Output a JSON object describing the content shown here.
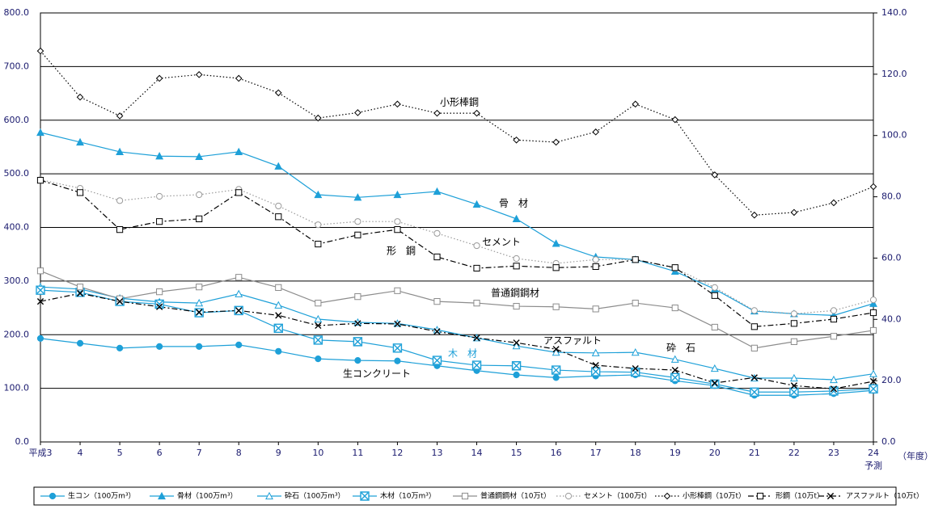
{
  "chart_data": {
    "type": "line",
    "categories": [
      "平成3",
      "4",
      "5",
      "6",
      "7",
      "8",
      "9",
      "10",
      "11",
      "12",
      "13",
      "14",
      "15",
      "16",
      "17",
      "18",
      "19",
      "20",
      "21",
      "22",
      "23",
      "24"
    ],
    "category_note": "予測",
    "x_unit": "（年度）",
    "ylim": [
      0,
      800
    ],
    "yticks": [
      {
        "value": 0,
        "label": "0.0"
      },
      {
        "value": 100,
        "label": "100.0"
      },
      {
        "value": 200,
        "label": "200.0"
      },
      {
        "value": 300,
        "label": "300.0"
      },
      {
        "value": 400,
        "label": "400.0"
      },
      {
        "value": 500,
        "label": "500.0"
      },
      {
        "value": 600,
        "label": "600.0"
      },
      {
        "value": 700,
        "label": "700.0"
      },
      {
        "value": 800,
        "label": "800.0"
      }
    ],
    "y2lim": [
      0,
      140
    ],
    "y2ticks": [
      {
        "value": 0,
        "label": "0.0"
      },
      {
        "value": 20,
        "label": "20.0"
      },
      {
        "value": 40,
        "label": "40.0"
      },
      {
        "value": 60,
        "label": "60.0"
      },
      {
        "value": 80,
        "label": "80.0"
      },
      {
        "value": 100,
        "label": "100.0"
      },
      {
        "value": 120,
        "label": "120.0"
      },
      {
        "value": 140,
        "label": "140.0"
      }
    ],
    "grid": true,
    "legend_position": "bottom",
    "series": [
      {
        "name": "生コン（100万m³）",
        "color": "#1ea0d8",
        "marker": "circle-filled",
        "dash": "solid",
        "values": [
          193,
          184,
          175,
          178,
          178,
          181,
          169,
          155,
          152,
          151,
          142,
          133,
          125,
          120,
          123,
          125,
          114,
          105,
          87,
          87,
          90,
          96
        ]
      },
      {
        "name": "骨材（100万m³）",
        "color": "#1ea0d8",
        "marker": "triangle-filled",
        "dash": "solid",
        "values": [
          577,
          559,
          541,
          533,
          532,
          541,
          514,
          461,
          456,
          461,
          467,
          443,
          416,
          370,
          345,
          340,
          318,
          285,
          244,
          239,
          236,
          258
        ]
      },
      {
        "name": "砕石（100万m³）",
        "color": "#1ea0d8",
        "marker": "triangle-open",
        "dash": "solid",
        "values": [
          289,
          285,
          268,
          261,
          259,
          276,
          255,
          229,
          223,
          221,
          209,
          194,
          179,
          167,
          166,
          167,
          154,
          137,
          119,
          119,
          116,
          127
        ]
      },
      {
        "name": "木材（10万m³）",
        "color": "#1ea0d8",
        "marker": "box-x",
        "dash": "solid",
        "values": [
          283,
          279,
          262,
          257,
          241,
          245,
          212,
          190,
          187,
          175,
          152,
          143,
          142,
          134,
          131,
          130,
          120,
          108,
          93,
          93,
          95,
          99
        ]
      },
      {
        "name": "普通鋼鋼材（10万t）",
        "color": "#8c8c8c",
        "marker": "square-open",
        "dash": "solid",
        "values": [
          319,
          289,
          267,
          280,
          289,
          307,
          288,
          259,
          271,
          282,
          262,
          259,
          253,
          252,
          248,
          259,
          250,
          214,
          175,
          187,
          197,
          208
        ]
      },
      {
        "name": "セメント（100万t）",
        "color": "#9a9a9a",
        "marker": "circle-open",
        "dash": "dotted",
        "values": [
          489,
          473,
          450,
          458,
          461,
          471,
          440,
          405,
          411,
          411,
          389,
          366,
          342,
          333,
          340,
          340,
          324,
          288,
          245,
          239,
          245,
          265
        ]
      },
      {
        "name": "小形棒鋼（10万t）",
        "color": "#000000",
        "marker": "diamond-open",
        "dash": "dotted",
        "values": [
          729,
          643,
          608,
          678,
          685,
          678,
          651,
          604,
          614,
          630,
          613,
          613,
          563,
          559,
          578,
          630,
          601,
          498,
          423,
          428,
          446,
          476
        ]
      },
      {
        "name": "形鋼（10万t）",
        "color": "#000000",
        "marker": "square-open",
        "dash": "dashdot",
        "values": [
          488,
          465,
          396,
          411,
          416,
          465,
          420,
          369,
          386,
          396,
          345,
          324,
          328,
          325,
          327,
          340,
          325,
          273,
          215,
          221,
          229,
          241
        ]
      },
      {
        "name": "アスファルト（10万t）",
        "color": "#000000",
        "marker": "x",
        "dash": "dashdot",
        "values": [
          262,
          277,
          262,
          252,
          242,
          245,
          236,
          217,
          221,
          220,
          206,
          194,
          185,
          173,
          143,
          137,
          134,
          110,
          120,
          105,
          99,
          113
        ]
      }
    ],
    "annotations": [
      "小形棒鋼",
      "骨　材",
      "セメント",
      "形　鋼",
      "普通鋼鋼材",
      "アスファルト",
      "砕　石",
      "木　材",
      "生コンクリート"
    ]
  }
}
